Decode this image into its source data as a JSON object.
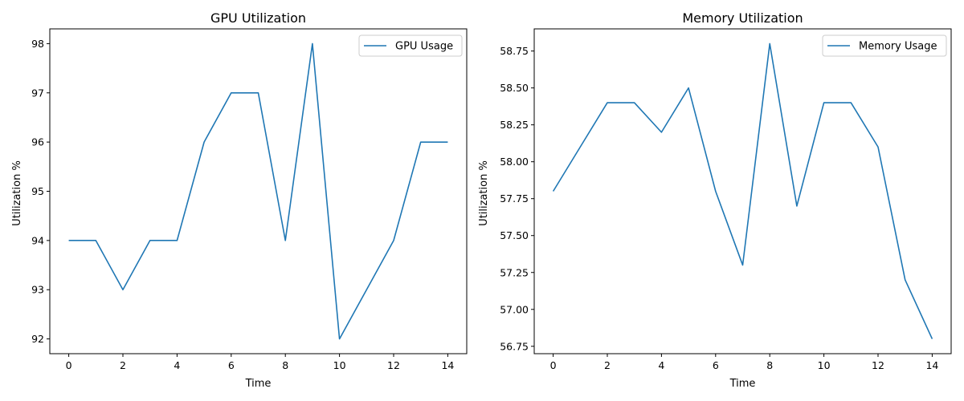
{
  "chart_data": [
    {
      "type": "line",
      "title": "GPU Utilization",
      "xlabel": "Time",
      "ylabel": "Utilization %",
      "x": [
        0,
        1,
        2,
        3,
        4,
        5,
        6,
        7,
        8,
        9,
        10,
        11,
        12,
        13,
        14
      ],
      "series": [
        {
          "name": "GPU Usage",
          "values": [
            94,
            94,
            93,
            94,
            94,
            96,
            97,
            97,
            94,
            98,
            92,
            93,
            94,
            96,
            96
          ],
          "color": "#1f77b4"
        }
      ],
      "xlim": [
        -0.7,
        14.7
      ],
      "ylim": [
        91.7,
        98.3
      ],
      "xticks": [
        0,
        2,
        4,
        6,
        8,
        10,
        12,
        14
      ],
      "xtick_labels": [
        "0",
        "2",
        "4",
        "6",
        "8",
        "10",
        "12",
        "14"
      ],
      "yticks": [
        92,
        93,
        94,
        95,
        96,
        97,
        98
      ],
      "ytick_labels": [
        "92",
        "93",
        "94",
        "95",
        "96",
        "97",
        "98"
      ],
      "grid": false,
      "legend": "top-right"
    },
    {
      "type": "line",
      "title": "Memory Utilization",
      "xlabel": "Time",
      "ylabel": "Utilization %",
      "x": [
        0,
        1,
        2,
        3,
        4,
        5,
        6,
        7,
        8,
        9,
        10,
        11,
        12,
        13,
        14
      ],
      "series": [
        {
          "name": "Memory Usage",
          "values": [
            57.8,
            58.1,
            58.4,
            58.4,
            58.2,
            58.5,
            57.8,
            57.3,
            58.8,
            57.7,
            58.4,
            58.4,
            58.1,
            57.2,
            56.8
          ],
          "color": "#1f77b4"
        }
      ],
      "xlim": [
        -0.7,
        14.7
      ],
      "ylim": [
        56.7,
        58.9
      ],
      "xticks": [
        0,
        2,
        4,
        6,
        8,
        10,
        12,
        14
      ],
      "xtick_labels": [
        "0",
        "2",
        "4",
        "6",
        "8",
        "10",
        "12",
        "14"
      ],
      "yticks": [
        56.75,
        57.0,
        57.25,
        57.5,
        57.75,
        58.0,
        58.25,
        58.5,
        58.75
      ],
      "ytick_labels": [
        "56.75",
        "57.00",
        "57.25",
        "57.50",
        "57.75",
        "58.00",
        "58.25",
        "58.50",
        "58.75"
      ],
      "grid": false,
      "legend": "top-right"
    }
  ]
}
